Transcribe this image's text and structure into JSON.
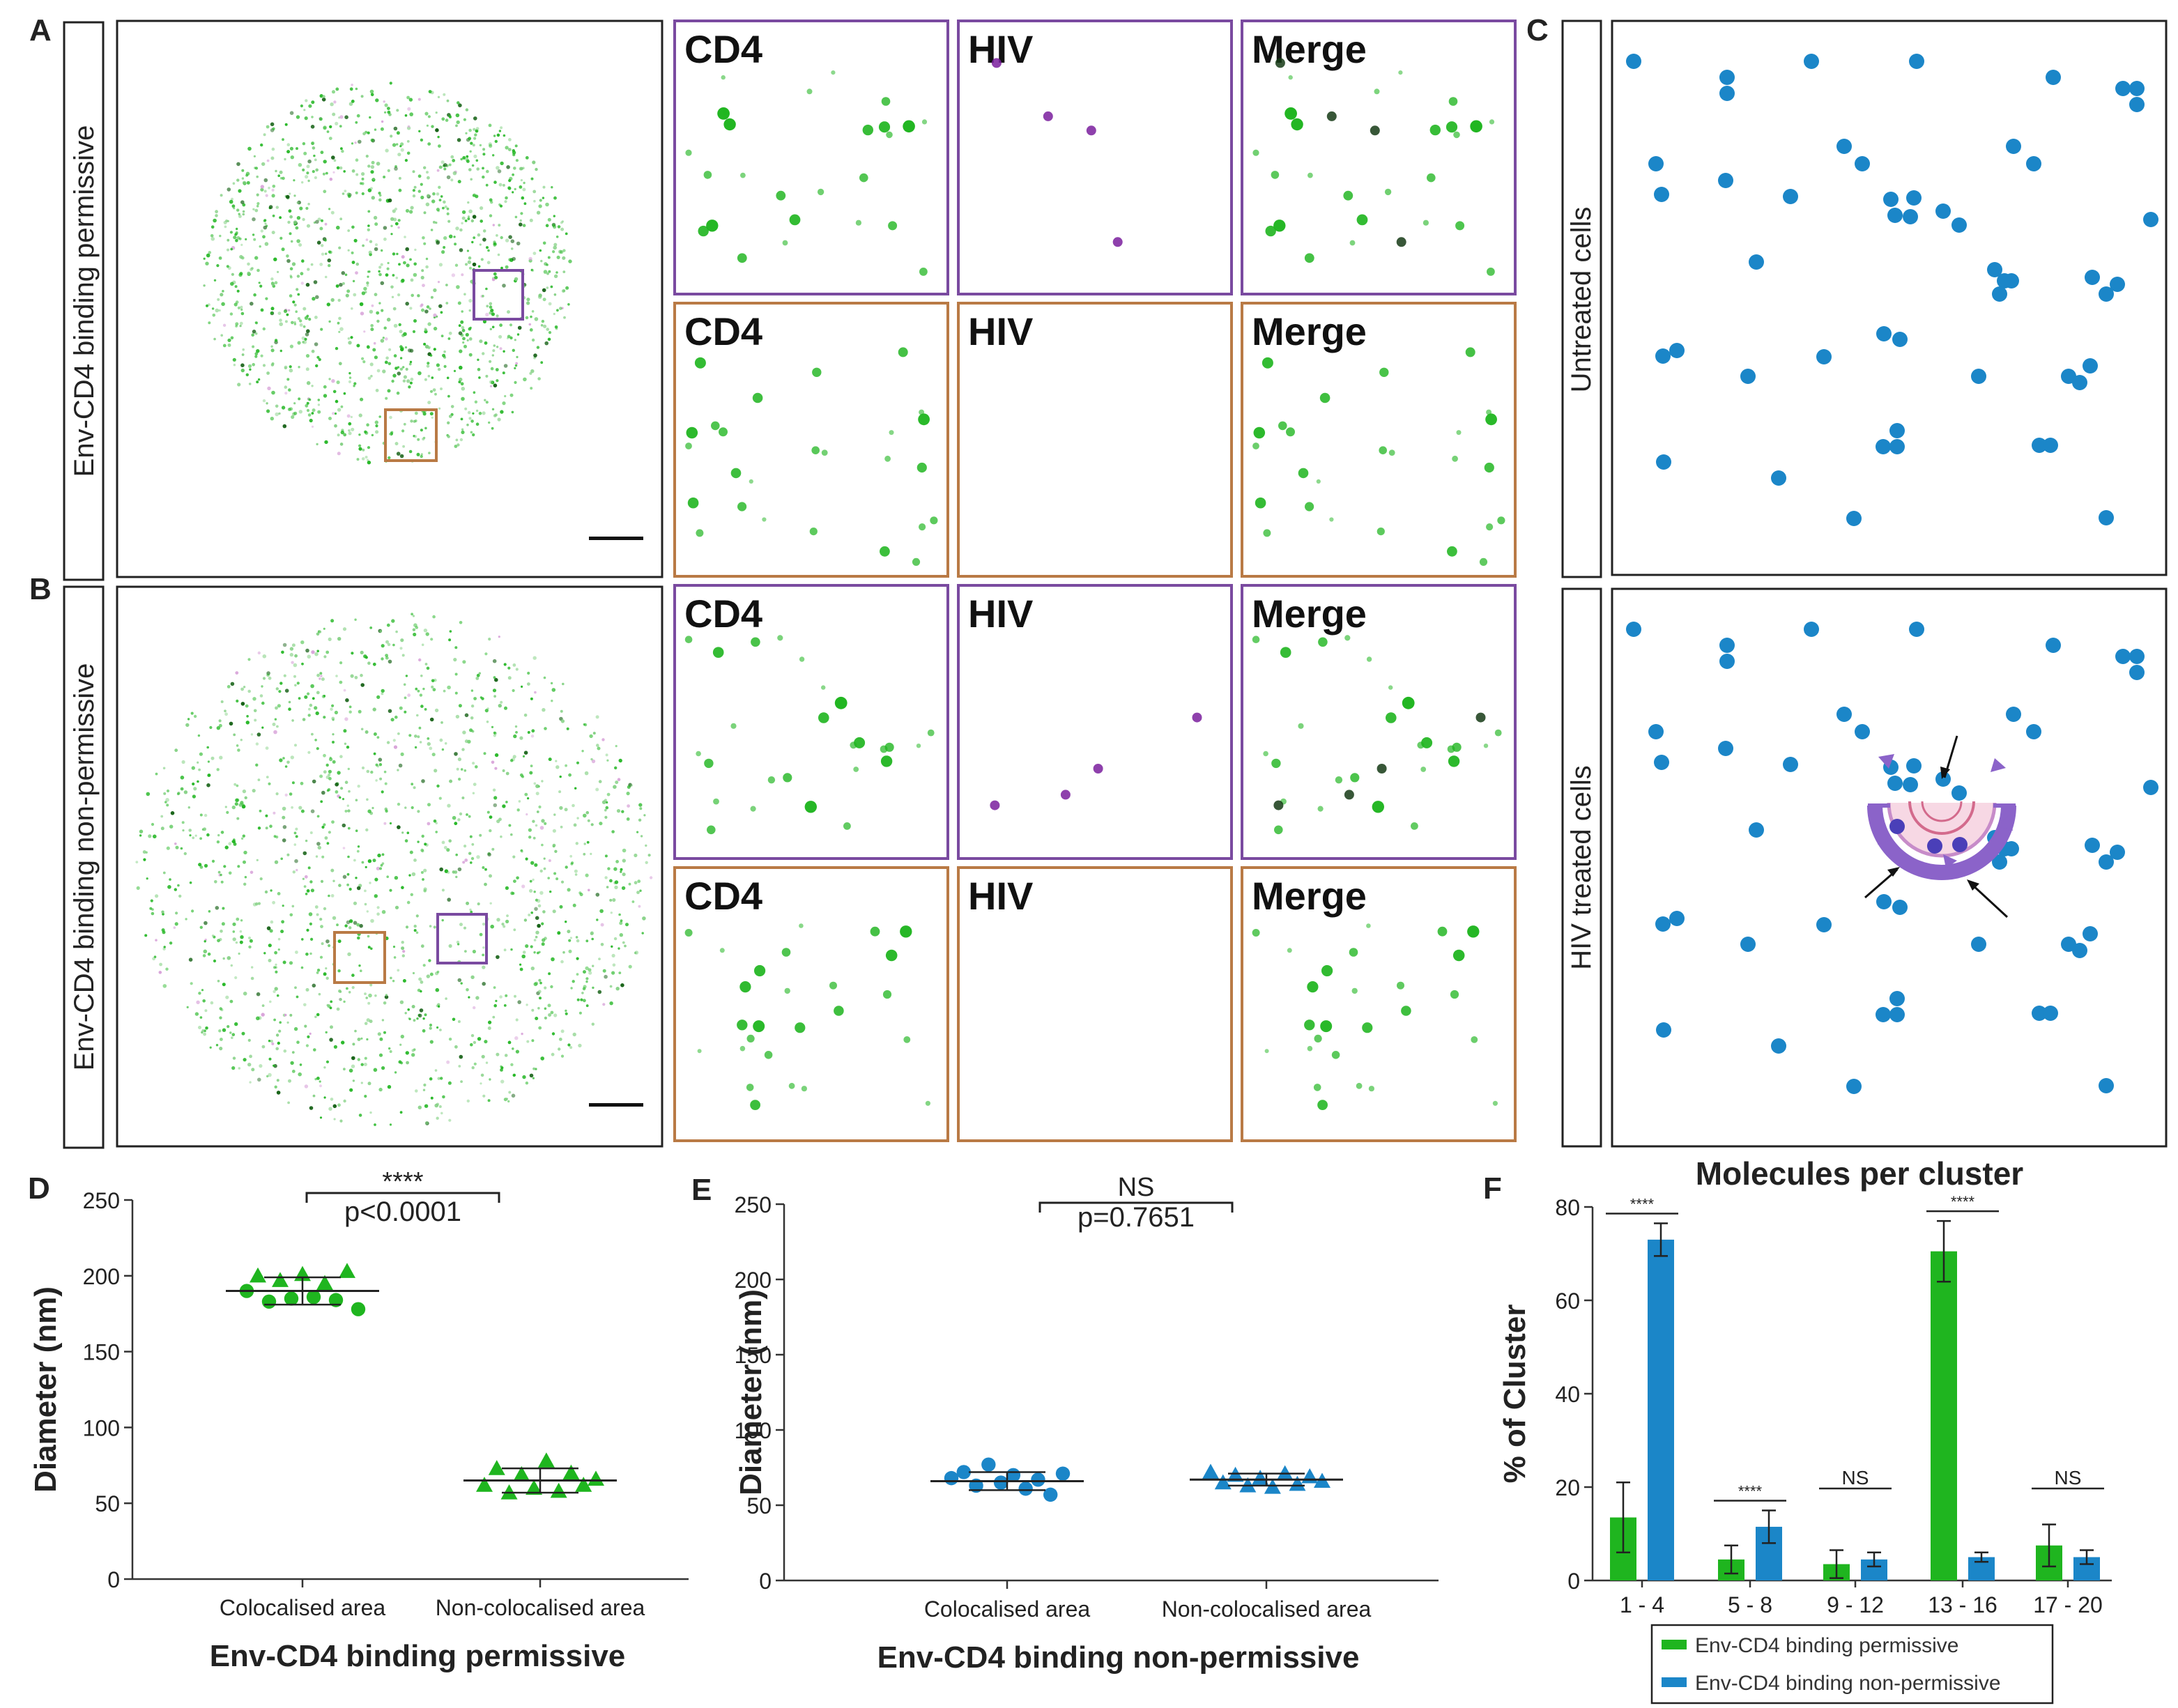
{
  "panel_letters": {
    "a": "A",
    "b": "B",
    "c": "C",
    "d": "D",
    "e": "E",
    "f": "F"
  },
  "row_labels": {
    "a": "Env-CD4 binding permissive",
    "b": "Env-CD4 binding non-permissive"
  },
  "c_labels": {
    "untreated": "Untreated cells",
    "treated": "HIV treated cells"
  },
  "inset_titles": [
    "CD4",
    "HIV",
    "Merge"
  ],
  "colors": {
    "green": "#1fb51f",
    "blue": "#1b86c8",
    "purple": "#7a4aa0",
    "orange": "#b97a45",
    "dark_green": "#0b5a0b",
    "hiv": "#7a1f9e"
  },
  "chart_data": [
    {
      "panel": "D",
      "type": "scatter",
      "title": "",
      "xlabel": "Env-CD4 binding permissive",
      "ylabel": "Diameter (nm)",
      "ylim": [
        0,
        250
      ],
      "yticks": [
        "0",
        "50",
        "100",
        "150",
        "200",
        "250"
      ],
      "categories": [
        "Colocalised area",
        "Non-colocalised area"
      ],
      "series": [
        {
          "name": "Colocalised area",
          "marker": "circle+triangle",
          "values": [
            190,
            200,
            183,
            197,
            185,
            201,
            186,
            195,
            184,
            203,
            178
          ],
          "mean": 190,
          "sd": 9
        },
        {
          "name": "Non-colocalised area",
          "marker": "triangle",
          "values": [
            62,
            73,
            57,
            69,
            60,
            78,
            58,
            70,
            62,
            66
          ],
          "mean": 65,
          "sd": 8
        }
      ],
      "significance": {
        "stars": "****",
        "p": "p<0.0001"
      }
    },
    {
      "panel": "E",
      "type": "scatter",
      "title": "",
      "xlabel": "Env-CD4 binding non-permissive",
      "ylabel": "Diameter (nm)",
      "ylim": [
        0,
        250
      ],
      "yticks": [
        "0",
        "50",
        "100",
        "150",
        "200",
        "250"
      ],
      "categories": [
        "Colocalised area",
        "Non-colocalised area"
      ],
      "series": [
        {
          "name": "Colocalised area",
          "marker": "circle",
          "values": [
            68,
            72,
            63,
            77,
            65,
            70,
            61,
            67,
            57,
            71
          ],
          "mean": 66,
          "sd": 6
        },
        {
          "name": "Non-colocalised area",
          "marker": "triangle",
          "values": [
            72,
            65,
            70,
            63,
            68,
            62,
            71,
            64,
            69,
            66
          ],
          "mean": 67,
          "sd": 4
        }
      ],
      "significance": {
        "stars": "NS",
        "p": "p=0.7651"
      }
    },
    {
      "panel": "F",
      "type": "bar",
      "title": "Molecules per cluster",
      "xlabel": "",
      "ylabel": "% of Cluster",
      "ylim": [
        0,
        80
      ],
      "yticks": [
        "0",
        "20",
        "40",
        "60",
        "80"
      ],
      "categories": [
        "1 - 4",
        "5 - 8",
        "9 - 12",
        "13 - 16",
        "17 - 20"
      ],
      "series": [
        {
          "name": "Env-CD4 binding permissive",
          "values": [
            13.5,
            4.5,
            3.5,
            70.5,
            7.5
          ],
          "errors": [
            7.5,
            3,
            3,
            6.5,
            4.5
          ]
        },
        {
          "name": "Env-CD4 binding non-permissive",
          "values": [
            73,
            11.5,
            4.5,
            5,
            5
          ],
          "errors": [
            3.5,
            3.5,
            1.5,
            1,
            1.5
          ]
        }
      ],
      "significance": [
        "****",
        "****",
        "NS",
        "****",
        "NS"
      ],
      "legend": "bottom"
    }
  ]
}
